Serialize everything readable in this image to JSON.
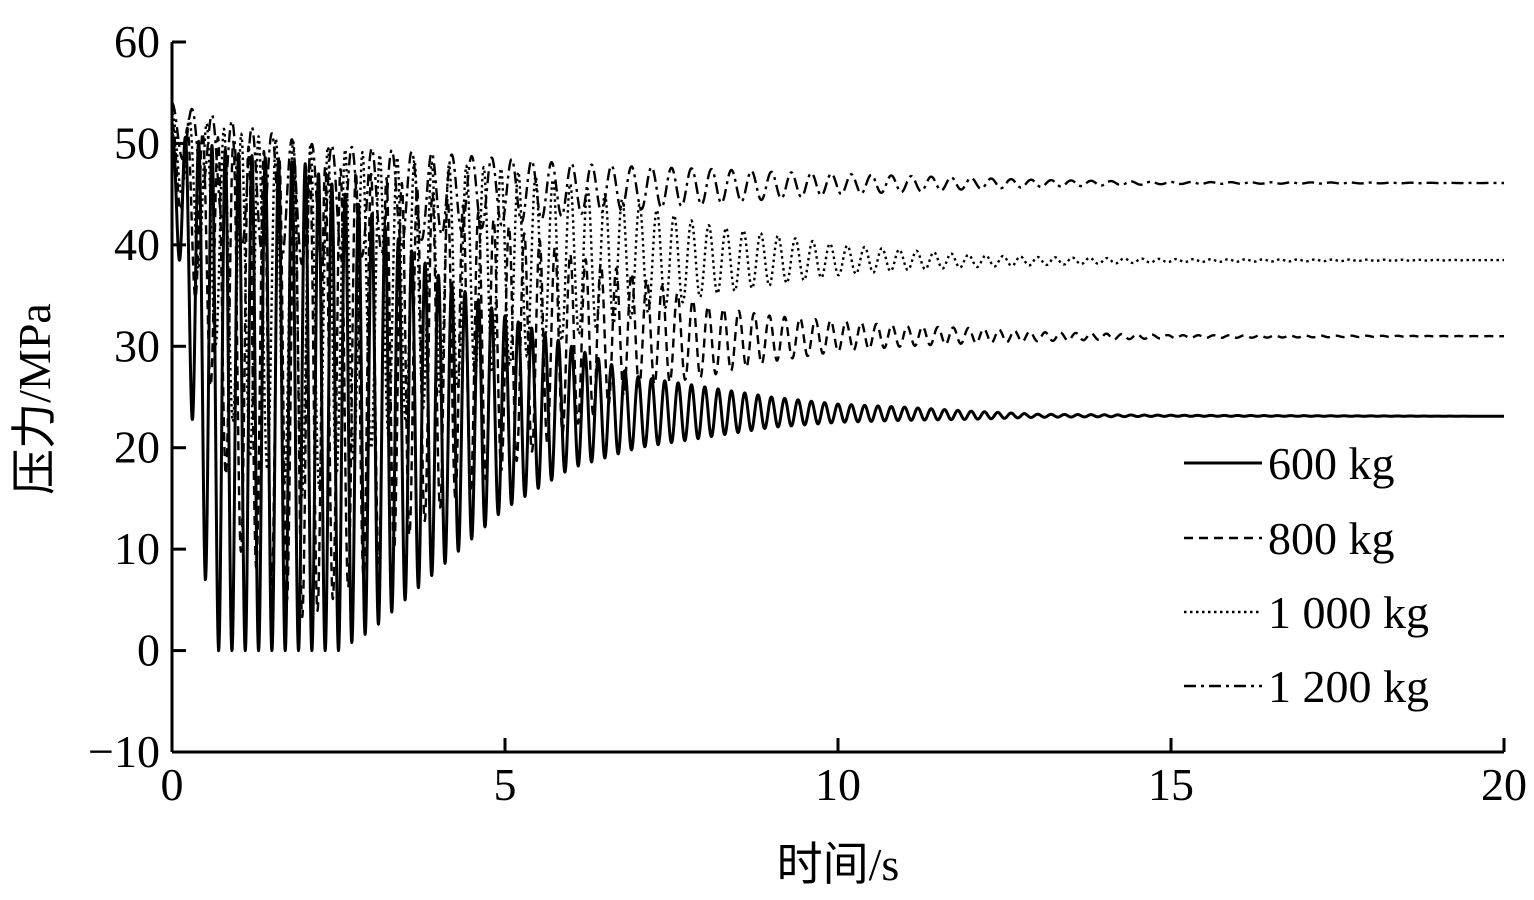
{
  "chart_data": {
    "type": "line",
    "title": "",
    "xlabel": "时间/s",
    "ylabel": "压力/MPa",
    "xlim": [
      0,
      20
    ],
    "ylim": [
      -10,
      60
    ],
    "xticks": [
      0,
      5,
      10,
      15,
      20
    ],
    "xtick_labels": [
      "0",
      "5",
      "10",
      "15",
      "20"
    ],
    "yticks": [
      -10,
      0,
      10,
      20,
      30,
      40,
      50,
      60
    ],
    "ytick_labels": [
      "−10",
      "0",
      "10",
      "20",
      "30",
      "40",
      "50",
      "60"
    ],
    "grid": false,
    "legend_position": "bottom-right",
    "series": [
      {
        "name": "600 kg",
        "line_style": "solid",
        "color": "#000000",
        "period_s": 0.2,
        "points": [
          [
            0,
            47
          ],
          [
            0.1,
            51
          ],
          [
            0.35,
            49
          ],
          [
            0.5,
            46
          ],
          [
            0.7,
            0
          ],
          [
            1.5,
            0
          ],
          [
            2.5,
            0
          ],
          [
            3,
            5
          ],
          [
            4,
            12
          ],
          [
            5,
            17
          ],
          [
            6,
            21
          ],
          [
            7,
            23
          ],
          [
            8,
            23
          ],
          [
            9,
            23
          ],
          [
            10,
            23
          ],
          [
            12,
            23
          ],
          [
            15,
            23
          ],
          [
            20,
            23
          ]
        ],
        "upper_envelope": [
          [
            0,
            51
          ],
          [
            1,
            49
          ],
          [
            2,
            48
          ],
          [
            3,
            43
          ],
          [
            4,
            37
          ],
          [
            5,
            33
          ],
          [
            6,
            30
          ],
          [
            7,
            27
          ],
          [
            8,
            26
          ],
          [
            9,
            25
          ],
          [
            10,
            24.3
          ],
          [
            11,
            24
          ],
          [
            12,
            23.6
          ],
          [
            13,
            23.3
          ],
          [
            15,
            23.2
          ],
          [
            20,
            23.1
          ]
        ],
        "lower_envelope": [
          [
            0,
            47
          ],
          [
            0.5,
            7
          ],
          [
            0.7,
            0
          ],
          [
            2.5,
            0
          ],
          [
            3,
            2
          ],
          [
            4,
            8
          ],
          [
            5,
            14
          ],
          [
            6,
            18
          ],
          [
            7,
            20
          ],
          [
            8,
            21
          ],
          [
            9,
            22
          ],
          [
            10,
            22.5
          ],
          [
            11,
            22.7
          ],
          [
            12,
            22.8
          ],
          [
            13,
            23
          ],
          [
            15,
            23.1
          ],
          [
            20,
            23.1
          ]
        ]
      },
      {
        "name": "800 kg",
        "line_style": "dashed",
        "color": "#000000",
        "period_s": 0.23,
        "points": [
          [
            0,
            51
          ],
          [
            5,
            28
          ],
          [
            10,
            31
          ],
          [
            15,
            31
          ],
          [
            20,
            31
          ]
        ],
        "upper_envelope": [
          [
            0,
            52
          ],
          [
            1,
            50
          ],
          [
            2,
            48
          ],
          [
            3,
            47
          ],
          [
            4,
            45
          ],
          [
            5,
            42
          ],
          [
            6,
            39
          ],
          [
            7,
            37
          ],
          [
            8,
            34
          ],
          [
            9,
            33
          ],
          [
            10,
            32.5
          ],
          [
            11,
            32
          ],
          [
            12,
            31.8
          ],
          [
            13,
            31.4
          ],
          [
            15,
            31.1
          ],
          [
            20,
            31
          ]
        ],
        "lower_envelope": [
          [
            0,
            48
          ],
          [
            1,
            10
          ],
          [
            2,
            3
          ],
          [
            3,
            8
          ],
          [
            4,
            14
          ],
          [
            5,
            18
          ],
          [
            6,
            22
          ],
          [
            7,
            26
          ],
          [
            8,
            27
          ],
          [
            9,
            28.5
          ],
          [
            10,
            29.5
          ],
          [
            11,
            30
          ],
          [
            12,
            30.3
          ],
          [
            13,
            30.5
          ],
          [
            15,
            30.8
          ],
          [
            20,
            31
          ]
        ]
      },
      {
        "name": "1 000 kg",
        "line_style": "dotted",
        "color": "#000000",
        "period_s": 0.26,
        "points": [
          [
            0,
            52
          ],
          [
            5,
            38
          ],
          [
            10,
            38
          ],
          [
            15,
            38
          ],
          [
            20,
            38
          ]
        ],
        "upper_envelope": [
          [
            0,
            53
          ],
          [
            1,
            51
          ],
          [
            2,
            50
          ],
          [
            3,
            49
          ],
          [
            4,
            48
          ],
          [
            5,
            47.5
          ],
          [
            6,
            46
          ],
          [
            7,
            44
          ],
          [
            8,
            42
          ],
          [
            9,
            41
          ],
          [
            10,
            40
          ],
          [
            11,
            39.5
          ],
          [
            12,
            39
          ],
          [
            13,
            38.8
          ],
          [
            15,
            38.6
          ],
          [
            20,
            38.5
          ]
        ],
        "lower_envelope": [
          [
            0,
            49
          ],
          [
            1,
            20
          ],
          [
            2,
            15
          ],
          [
            3,
            20
          ],
          [
            4,
            25
          ],
          [
            5,
            28
          ],
          [
            6,
            31
          ],
          [
            7,
            33
          ],
          [
            8,
            35
          ],
          [
            9,
            36
          ],
          [
            10,
            37
          ],
          [
            11,
            37.5
          ],
          [
            12,
            37.8
          ],
          [
            13,
            38
          ],
          [
            15,
            38.3
          ],
          [
            20,
            38.5
          ]
        ]
      },
      {
        "name": "1 200 kg",
        "line_style": "dash-dot",
        "color": "#000000",
        "period_s": 0.3,
        "points": [
          [
            0,
            53
          ],
          [
            5,
            46
          ],
          [
            10,
            46
          ],
          [
            15,
            46
          ],
          [
            20,
            46
          ]
        ],
        "upper_envelope": [
          [
            0,
            54
          ],
          [
            1,
            52
          ],
          [
            2,
            50
          ],
          [
            3,
            49.5
          ],
          [
            4,
            49
          ],
          [
            5,
            48.5
          ],
          [
            6,
            48
          ],
          [
            7,
            47.7
          ],
          [
            8,
            47.5
          ],
          [
            9,
            47.2
          ],
          [
            10,
            47
          ],
          [
            11,
            46.8
          ],
          [
            12,
            46.6
          ],
          [
            13,
            46.4
          ],
          [
            15,
            46.2
          ],
          [
            20,
            46.1
          ]
        ],
        "lower_envelope": [
          [
            0,
            50
          ],
          [
            1,
            40
          ],
          [
            2,
            38
          ],
          [
            3,
            39
          ],
          [
            4,
            41
          ],
          [
            5,
            42
          ],
          [
            6,
            43
          ],
          [
            7,
            43.5
          ],
          [
            8,
            44
          ],
          [
            9,
            44.5
          ],
          [
            10,
            45
          ],
          [
            11,
            45.2
          ],
          [
            12,
            45.5
          ],
          [
            13,
            45.7
          ],
          [
            15,
            46
          ],
          [
            20,
            46.1
          ]
        ]
      }
    ]
  }
}
